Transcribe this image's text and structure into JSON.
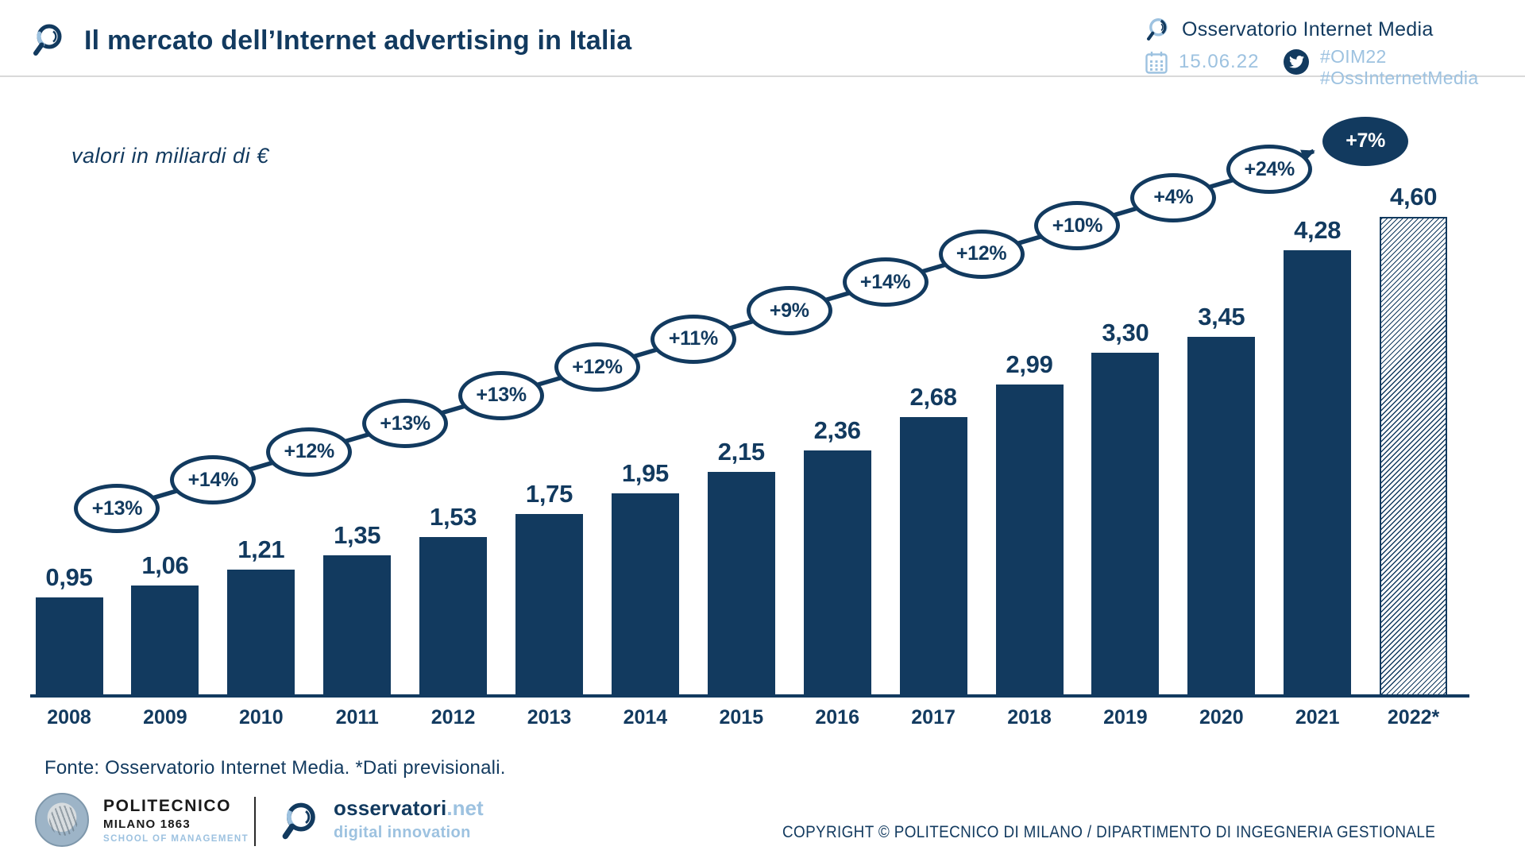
{
  "header": {
    "title": "Il mercato dell’Internet advertising in Italia",
    "observatory": "Osservatorio Internet Media",
    "date": "15.06.22",
    "hashtags": [
      "#OIM22",
      "#OssInternetMedia"
    ]
  },
  "chart_data": {
    "type": "bar",
    "title": "Il mercato dell’Internet advertising in Italia",
    "subtitle": "valori in miliardi di €",
    "unit": "miliardi di €",
    "categories": [
      "2008",
      "2009",
      "2010",
      "2011",
      "2012",
      "2013",
      "2014",
      "2015",
      "2016",
      "2017",
      "2018",
      "2019",
      "2020",
      "2021",
      "2022*"
    ],
    "values": [
      0.95,
      1.06,
      1.21,
      1.35,
      1.53,
      1.75,
      1.95,
      2.15,
      2.36,
      2.68,
      2.99,
      3.3,
      3.45,
      4.28,
      4.6
    ],
    "value_labels": [
      "0,95",
      "1,06",
      "1,21",
      "1,35",
      "1,53",
      "1,75",
      "1,95",
      "2,15",
      "2,36",
      "2,68",
      "2,99",
      "3,30",
      "3,45",
      "4,28",
      "4,60"
    ],
    "growth_labels": [
      "+13%",
      "+14%",
      "+12%",
      "+13%",
      "+13%",
      "+12%",
      "+11%",
      "+9%",
      "+14%",
      "+12%",
      "+10%",
      "+4%",
      "+24%",
      "+7%"
    ],
    "highlighted_growth_label": "+7%",
    "forecast_category": "2022*",
    "xlabel": "",
    "ylabel": "",
    "ylim": [
      0,
      5
    ],
    "grid": false,
    "legend": "none",
    "bar_color": "#123A5F",
    "accent_lightblue": "#9DC2E0"
  },
  "source": "Fonte: Osservatorio Internet Media. *Dati previsionali.",
  "footer": {
    "polimi": {
      "line1": "POLITECNICO",
      "line2": "MILANO 1863",
      "line3": "SCHOOL OF MANAGEMENT"
    },
    "osservatori": {
      "name": "osservatori",
      "net": ".net",
      "tagline": "digital innovation"
    },
    "copyright": "COPYRIGHT © POLITECNICO DI MILANO / DIPARTIMENTO DI INGEGNERIA GESTIONALE"
  }
}
